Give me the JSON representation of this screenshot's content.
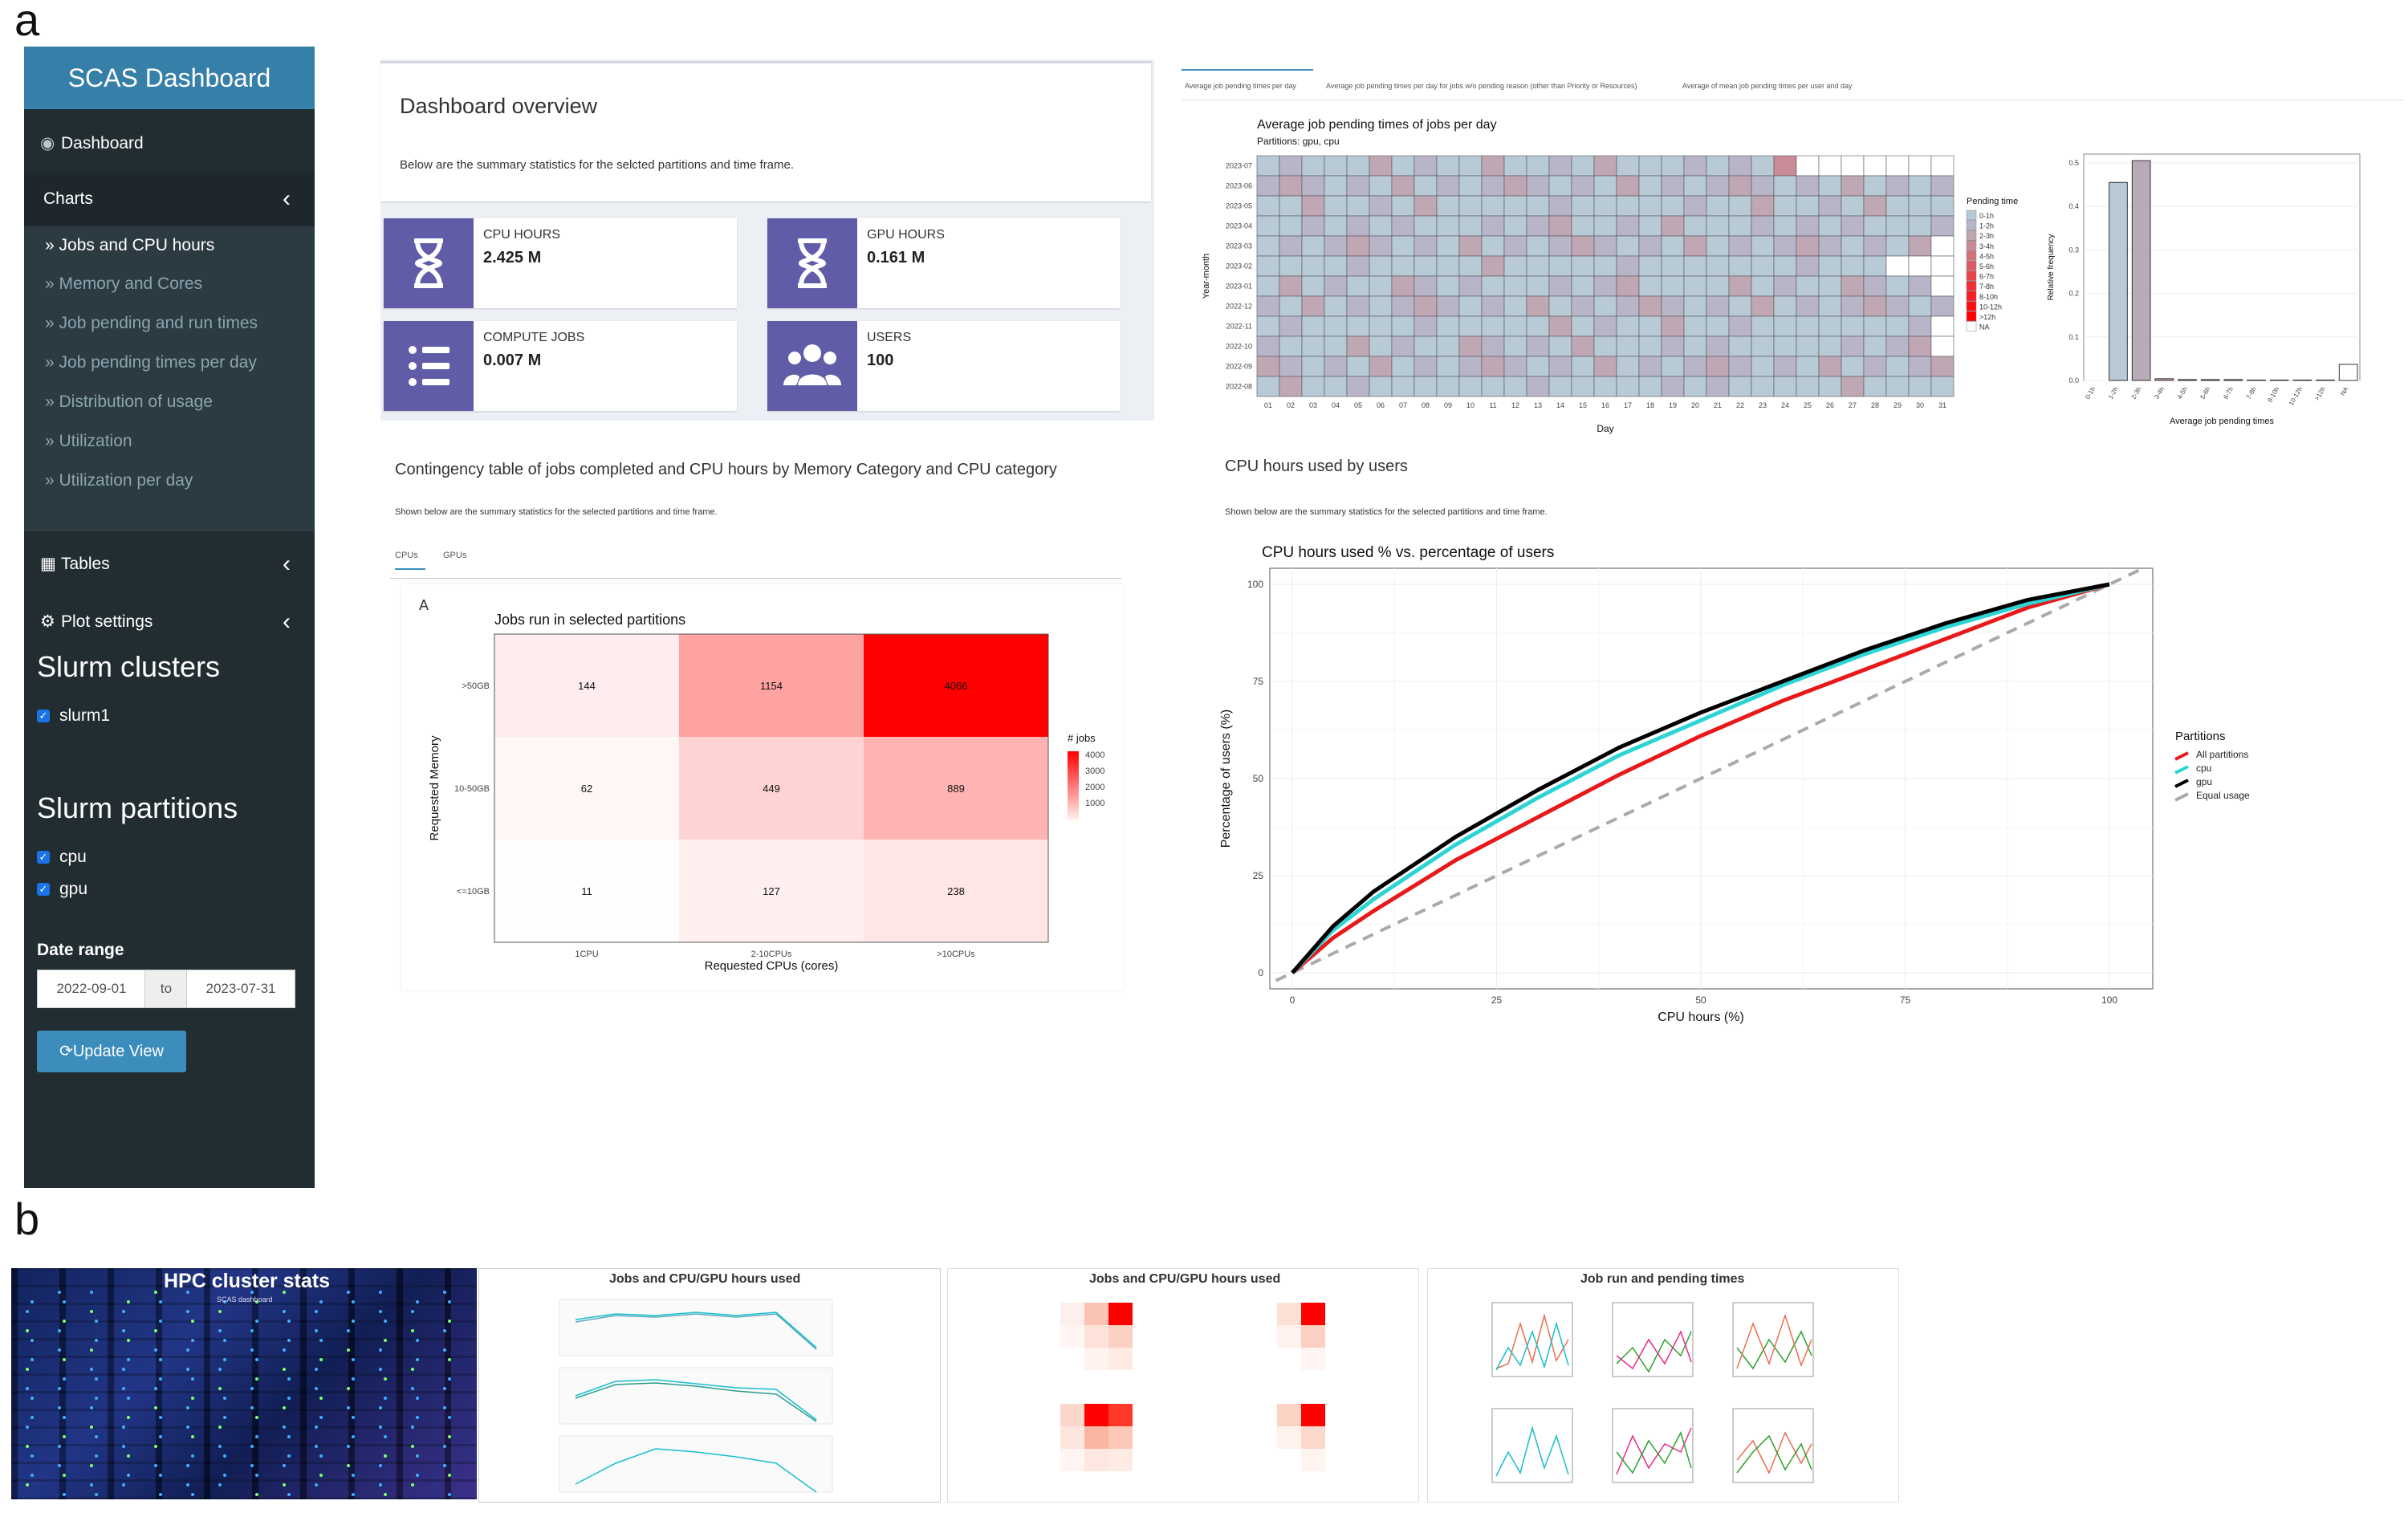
{
  "panels": {
    "a": "a",
    "b": "b"
  },
  "sidebar": {
    "title": "SCAS Dashboard",
    "dashboard_label": "Dashboard",
    "charts_label": "Charts",
    "chart_items": [
      "Jobs and CPU hours",
      "Memory and Cores",
      "Job pending and run times",
      "Job pending times per day",
      "Distribution of usage",
      "Utilization",
      "Utilization per day"
    ],
    "tables_label": "Tables",
    "plot_settings_label": "Plot settings",
    "clusters_heading": "Slurm clusters",
    "clusters": [
      "slurm1"
    ],
    "partitions_heading": "Slurm partitions",
    "partitions": [
      "cpu",
      "gpu"
    ],
    "date_range_label": "Date range",
    "date_start": "2022-09-01",
    "date_to": "to",
    "date_end": "2023-07-31",
    "update_button": "Update View",
    "icons": {
      "dashboard": "palette-icon",
      "tables": "table-icon",
      "plot_settings": "gears-icon",
      "chevron": "chevron-left-icon",
      "sub": "double-chevron-right-icon",
      "update": "refresh-icon"
    }
  },
  "overview": {
    "title": "Dashboard overview",
    "subtitle": "Below are the summary statistics for the selcted partitions and time frame.",
    "cards": [
      {
        "label": "CPU HOURS",
        "value": "2.425 M",
        "icon": "hourglass-icon"
      },
      {
        "label": "GPU HOURS",
        "value": "0.161 M",
        "icon": "hourglass-icon"
      },
      {
        "label": "COMPUTE JOBS",
        "value": "0.007 M",
        "icon": "list-icon"
      },
      {
        "label": "USERS",
        "value": "100",
        "icon": "users-icon"
      }
    ],
    "accent": "#605ca8"
  },
  "contingency": {
    "title": "Contingency table of jobs completed and CPU hours by Memory Category and CPU category",
    "subtitle": "Shown below are the summary statistics for the selected partitions and time frame.",
    "tabs": [
      "CPUs",
      "GPUs"
    ],
    "panel_label": "A"
  },
  "pending_tabs": [
    "Average job pending times per day",
    "Average job pending times per day for jobs w/o pending reason (other than Priority or Resources)",
    "Average of mean job pending times per user and day"
  ],
  "users_section": {
    "title": "CPU hours used by users",
    "subtitle": "Shown below are the summary statistics for the selected partitions and time frame."
  },
  "chart_data": [
    {
      "type": "heatmap",
      "title": "Jobs run in selected partitions",
      "xlabel": "Requested CPUs (cores)",
      "ylabel": "Requested Memory",
      "x": [
        "1CPU",
        "2-10CPUs",
        ">10CPUs"
      ],
      "y": [
        ">50GB",
        "10-50GB",
        "<=10GB"
      ],
      "values": [
        [
          144,
          1154,
          4066
        ],
        [
          62,
          449,
          889
        ],
        [
          11,
          127,
          238
        ]
      ],
      "legend_title": "# jobs",
      "legend_ticks": [
        4000,
        3000,
        2000,
        1000
      ]
    },
    {
      "type": "heatmap",
      "title": "Average job pending times of jobs per day",
      "subtitle": "Partitions: gpu, cpu",
      "xlabel": "Day",
      "ylabel": "Year-month",
      "x": [
        "01",
        "02",
        "03",
        "04",
        "05",
        "06",
        "07",
        "08",
        "09",
        "10",
        "11",
        "12",
        "13",
        "14",
        "15",
        "16",
        "17",
        "18",
        "19",
        "20",
        "21",
        "22",
        "23",
        "24",
        "25",
        "26",
        "27",
        "28",
        "29",
        "30",
        "31"
      ],
      "y": [
        "2023-07",
        "2023-06",
        "2023-05",
        "2023-04",
        "2023-03",
        "2023-02",
        "2023-01",
        "2022-12",
        "2022-11",
        "2022-10",
        "2022-09",
        "2022-08"
      ],
      "legend_title": "Pending time",
      "legend_entries": [
        "0-1h",
        "1-2h",
        "2-3h",
        "3-4h",
        "4-5h",
        "5-6h",
        "6-7h",
        "7-8h",
        "8-10h",
        "10-12h",
        ">12h",
        "NA"
      ],
      "legend_colors": [
        "#b7cad5",
        "#b9b5c8",
        "#c0a7b4",
        "#c98b97",
        "#d5707b",
        "#de5a62",
        "#e6434b",
        "#ee2f35",
        "#f51e22",
        "#fb0e10",
        "#ff0000",
        "#ffffff"
      ]
    },
    {
      "type": "bar",
      "xlabel": "Average job pending times",
      "ylabel": "Relative frequency",
      "categories": [
        "0-1h",
        "1-2h",
        "2-3h",
        "3-4h",
        "4-5h",
        "5-6h",
        "6-7h",
        "7-8h",
        "8-10h",
        "10-12h",
        ">12h",
        "NA"
      ],
      "values": [
        0.0,
        0.455,
        0.505,
        0.004,
        0.002,
        0.002,
        0.002,
        0.001,
        0.001,
        0.001,
        0.001,
        0.037
      ],
      "ylim": [
        0,
        0.52
      ],
      "yticks": [
        "0.0",
        "0.1",
        "0.2",
        "0.3",
        "0.4",
        "0.5"
      ]
    },
    {
      "type": "line",
      "title": "CPU hours used % vs. percentage of users",
      "xlabel": "CPU hours (%)",
      "ylabel": "Percentage of users (%)",
      "xlim": [
        0,
        100
      ],
      "ylim": [
        0,
        100
      ],
      "ticks": [
        0,
        25,
        50,
        75,
        100
      ],
      "legend_title": "Partitions",
      "series": [
        {
          "name": "All partitions",
          "color": "#e8191b",
          "x": [
            0,
            5,
            10,
            20,
            30,
            40,
            50,
            60,
            70,
            80,
            90,
            100
          ],
          "y": [
            0,
            9,
            16,
            29,
            40,
            51,
            61,
            70,
            78,
            86,
            94,
            100
          ]
        },
        {
          "name": "cpu",
          "color": "#2dd4d4",
          "x": [
            0,
            5,
            10,
            20,
            30,
            40,
            50,
            60,
            70,
            80,
            90,
            100
          ],
          "y": [
            0,
            11,
            19,
            33,
            45,
            56,
            65,
            74,
            82,
            89,
            95,
            100
          ]
        },
        {
          "name": "gpu",
          "color": "#000000",
          "x": [
            0,
            5,
            10,
            20,
            30,
            40,
            50,
            60,
            70,
            80,
            90,
            100
          ],
          "y": [
            0,
            12,
            21,
            35,
            47,
            58,
            67,
            75,
            83,
            90,
            96,
            100
          ]
        },
        {
          "name": "Equal usage",
          "color": "#aaaaaa",
          "x": [
            0,
            100
          ],
          "y": [
            0,
            100
          ]
        }
      ]
    }
  ],
  "thumbnails": {
    "hpc_title": "HPC cluster stats",
    "hpc_sub": "SCAS dashboard",
    "t1_title": "Jobs and CPU/GPU hours used",
    "t2_title": "Jobs and CPU/GPU hours used",
    "t3_title": "Job run and pending times"
  }
}
